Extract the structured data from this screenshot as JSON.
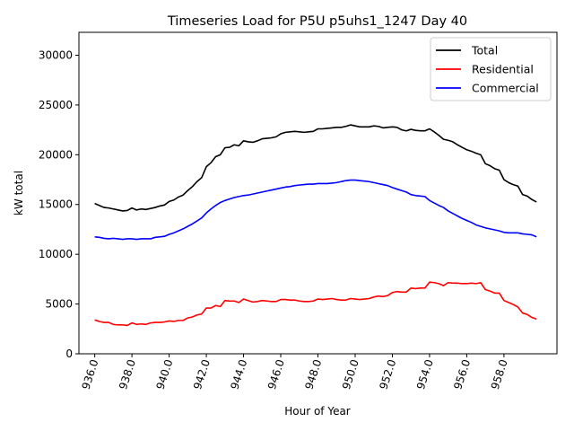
{
  "chart_data": {
    "type": "line",
    "title": "Timeseries Load for P5U p5uhs1_1247  Day 40",
    "xlabel": "Hour of Year",
    "ylabel": "kW total",
    "xlim": [
      935.15,
      960.85
    ],
    "ylim": [
      0,
      32300
    ],
    "x_ticks": [
      936,
      938,
      940,
      942,
      944,
      946,
      948,
      950,
      952,
      954,
      956,
      958
    ],
    "x_tick_labels": [
      "936.0",
      "938.0",
      "940.0",
      "942.0",
      "944.0",
      "946.0",
      "948.0",
      "950.0",
      "952.0",
      "954.0",
      "956.0",
      "958.0"
    ],
    "y_ticks": [
      0,
      5000,
      10000,
      15000,
      20000,
      25000,
      30000
    ],
    "y_tick_labels": [
      "0",
      "5000",
      "10000",
      "15000",
      "20000",
      "25000",
      "30000"
    ],
    "legend_position": "top-right",
    "x_start": 936.0,
    "x_step": 0.25,
    "series": [
      {
        "name": "Total",
        "color": "#000000",
        "values": [
          15100,
          14900,
          14700,
          14650,
          14550,
          14450,
          14350,
          14400,
          14650,
          14450,
          14550,
          14500,
          14600,
          14700,
          14850,
          14950,
          15300,
          15450,
          15750,
          15950,
          16400,
          16800,
          17300,
          17700,
          18800,
          19200,
          19800,
          20000,
          20700,
          20750,
          21000,
          20900,
          21400,
          21300,
          21250,
          21400,
          21600,
          21650,
          21700,
          21800,
          22100,
          22250,
          22300,
          22350,
          22300,
          22250,
          22300,
          22350,
          22600,
          22600,
          22650,
          22700,
          22750,
          22750,
          22850,
          23000,
          22900,
          22800,
          22800,
          22800,
          22900,
          22850,
          22700,
          22750,
          22800,
          22750,
          22500,
          22400,
          22550,
          22450,
          22400,
          22400,
          22600,
          22300,
          21950,
          21550,
          21450,
          21300,
          21000,
          20750,
          20500,
          20350,
          20150,
          20000,
          19100,
          18900,
          18600,
          18450,
          17500,
          17200,
          17000,
          16850,
          16000,
          15850,
          15500,
          15250
        ]
      },
      {
        "name": "Residential",
        "color": "#ff0000",
        "values": [
          3400,
          3250,
          3150,
          3150,
          2950,
          2900,
          2900,
          2850,
          3100,
          2950,
          3000,
          2950,
          3100,
          3150,
          3150,
          3200,
          3300,
          3250,
          3350,
          3350,
          3600,
          3700,
          3900,
          4000,
          4600,
          4600,
          4850,
          4750,
          5350,
          5300,
          5300,
          5150,
          5500,
          5350,
          5200,
          5250,
          5350,
          5300,
          5250,
          5250,
          5450,
          5450,
          5400,
          5400,
          5300,
          5250,
          5250,
          5300,
          5500,
          5450,
          5500,
          5550,
          5450,
          5400,
          5400,
          5550,
          5500,
          5450,
          5500,
          5550,
          5700,
          5800,
          5750,
          5850,
          6150,
          6250,
          6200,
          6200,
          6600,
          6550,
          6600,
          6600,
          7200,
          7150,
          7050,
          6850,
          7150,
          7100,
          7100,
          7050,
          7050,
          7100,
          7050,
          7150,
          6450,
          6300,
          6100,
          6100,
          5350,
          5150,
          4950,
          4700,
          4100,
          3950,
          3650,
          3500
        ]
      },
      {
        "name": "Commercial",
        "color": "#0000ff",
        "values": [
          11750,
          11700,
          11600,
          11550,
          11600,
          11550,
          11500,
          11550,
          11550,
          11500,
          11550,
          11550,
          11550,
          11700,
          11750,
          11800,
          12000,
          12150,
          12350,
          12550,
          12800,
          13050,
          13350,
          13650,
          14150,
          14550,
          14900,
          15200,
          15400,
          15550,
          15700,
          15800,
          15900,
          15950,
          16050,
          16150,
          16250,
          16350,
          16450,
          16550,
          16650,
          16750,
          16800,
          16900,
          16950,
          17000,
          17050,
          17050,
          17100,
          17100,
          17100,
          17150,
          17200,
          17300,
          17400,
          17450,
          17450,
          17400,
          17350,
          17300,
          17200,
          17100,
          17000,
          16900,
          16700,
          16550,
          16400,
          16250,
          16000,
          15900,
          15850,
          15800,
          15400,
          15150,
          14900,
          14700,
          14350,
          14100,
          13850,
          13600,
          13400,
          13200,
          12950,
          12800,
          12650,
          12550,
          12450,
          12350,
          12200,
          12150,
          12150,
          12150,
          12050,
          12000,
          11950,
          11750
        ]
      }
    ]
  }
}
